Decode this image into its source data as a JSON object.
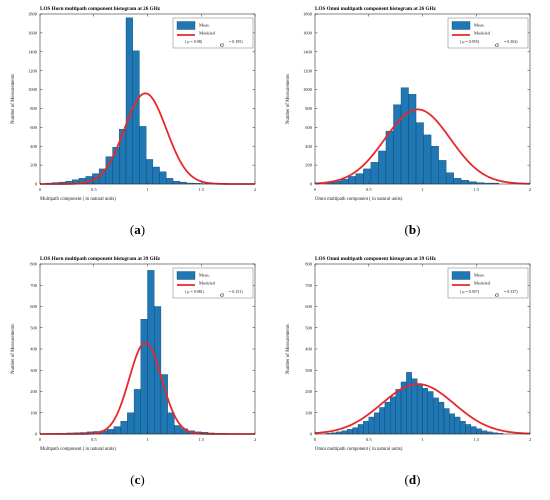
{
  "chart_data": [
    {
      "type": "bar",
      "panel_label": "a",
      "title": "LOS Horn multipath component histogram at 26 GHz",
      "xlabel": "Multipath component ( in natural units)",
      "ylabel": "Number of Measurements",
      "xlim": [
        0,
        2
      ],
      "ylim": [
        0,
        1800
      ],
      "xticks": [
        "0",
        "0.5",
        "1",
        "1.5",
        "2"
      ],
      "yticks": [
        "0",
        "200",
        "400",
        "600",
        "800",
        "1000",
        "1200",
        "1400",
        "1600",
        "1800"
      ],
      "grid": false,
      "legend": {
        "placement": "top-right",
        "meas_label": "Meas.",
        "model_label": "Modeled",
        "mu_text": "( μ    = 0.98)",
        "sigma_symbol": "σ",
        "sigma_text": "= 0.195)"
      },
      "bar_color": "#1f77b4",
      "line_color": "#e8282a",
      "bins": {
        "start": 0.05,
        "width": 0.0625,
        "values": [
          10,
          15,
          20,
          30,
          45,
          60,
          80,
          110,
          160,
          290,
          390,
          580,
          1760,
          1410,
          610,
          260,
          180,
          130,
          60,
          30,
          20,
          10,
          8,
          5,
          3
        ]
      },
      "model": {
        "mu": 0.98,
        "sigma": 0.195,
        "peak": 960
      }
    },
    {
      "type": "bar",
      "panel_label": "b",
      "title": "LOS Omni multipath component histogram at 26 GHz",
      "xlabel": "Omni multipath component ( in natural units)",
      "ylabel": "Number of Measurements",
      "xlim": [
        0,
        2
      ],
      "ylim": [
        0,
        1800
      ],
      "xticks": [
        "0",
        "0.5",
        "1",
        "1.5",
        "2"
      ],
      "yticks": [
        "0",
        "200",
        "400",
        "600",
        "800",
        "1000",
        "1200",
        "1400",
        "1600",
        "1800"
      ],
      "grid": false,
      "legend": {
        "placement": "top-right",
        "meas_label": "Meas.",
        "model_label": "Modeled",
        "mu_text": "( μ    = 0.955)",
        "sigma_symbol": "σ",
        "sigma_text": "= 0.304)"
      },
      "bar_color": "#1f77b4",
      "line_color": "#e8282a",
      "bins": {
        "start": 0.1,
        "width": 0.07,
        "values": [
          15,
          30,
          50,
          80,
          110,
          160,
          230,
          350,
          560,
          840,
          1020,
          950,
          650,
          520,
          400,
          250,
          120,
          60,
          40,
          25,
          15,
          10,
          10
        ]
      },
      "model": {
        "mu": 0.955,
        "sigma": 0.304,
        "peak": 790
      }
    },
    {
      "type": "bar",
      "panel_label": "c",
      "title": "LOS Horn multipath component histogram at 39 GHz",
      "xlabel": "Multipath component ( in natural units)",
      "ylabel": "Number of Measurements",
      "xlim": [
        0,
        2
      ],
      "ylim": [
        0,
        800
      ],
      "xticks": [
        "0",
        "0.5",
        "1",
        "1.5",
        "2"
      ],
      "yticks": [
        "0",
        "100",
        "200",
        "300",
        "400",
        "500",
        "600",
        "700",
        "800"
      ],
      "grid": false,
      "legend": {
        "placement": "top-right",
        "meas_label": "Meas.",
        "model_label": "Modeled",
        "mu_text": "( μ    = 0.981)",
        "sigma_symbol": "σ",
        "sigma_text": "= 0.151)"
      },
      "bar_color": "#1f77b4",
      "line_color": "#e8282a",
      "bins": {
        "start": 0.0,
        "width": 0.0625,
        "values": [
          2,
          3,
          3,
          4,
          5,
          6,
          7,
          10,
          12,
          15,
          22,
          35,
          60,
          100,
          210,
          540,
          770,
          600,
          280,
          100,
          40,
          25,
          15,
          10,
          8,
          5,
          4,
          3,
          2,
          2
        ]
      },
      "model": {
        "mu": 0.981,
        "sigma": 0.151,
        "peak": 430
      }
    },
    {
      "type": "bar",
      "panel_label": "d",
      "title": "LOS Omni multipath component histogram at 39 GHz",
      "xlabel": "Omni multipath component ( in natural units)",
      "ylabel": "Number of Measurements",
      "xlim": [
        0,
        2
      ],
      "ylim": [
        0,
        800
      ],
      "xticks": [
        "0",
        "0.5",
        "1",
        "1.5",
        "2"
      ],
      "yticks": [
        "0",
        "100",
        "200",
        "300",
        "400",
        "500",
        "600",
        "700",
        "800"
      ],
      "grid": false,
      "legend": {
        "placement": "top-right",
        "meas_label": "Meas.",
        "model_label": "Modeled",
        "mu_text": "( μ    = 0.957)",
        "sigma_symbol": "σ",
        "sigma_text": "= 0.337)"
      },
      "bar_color": "#1f77b4",
      "line_color": "#e8282a",
      "bins": {
        "start": 0.1,
        "width": 0.05,
        "values": [
          3,
          6,
          10,
          15,
          22,
          30,
          45,
          60,
          80,
          100,
          125,
          150,
          175,
          210,
          245,
          290,
          260,
          230,
          215,
          200,
          170,
          150,
          120,
          95,
          80,
          60,
          45,
          35,
          25,
          15,
          10,
          6,
          3
        ]
      },
      "model": {
        "mu": 0.957,
        "sigma": 0.337,
        "peak": 235
      }
    }
  ]
}
